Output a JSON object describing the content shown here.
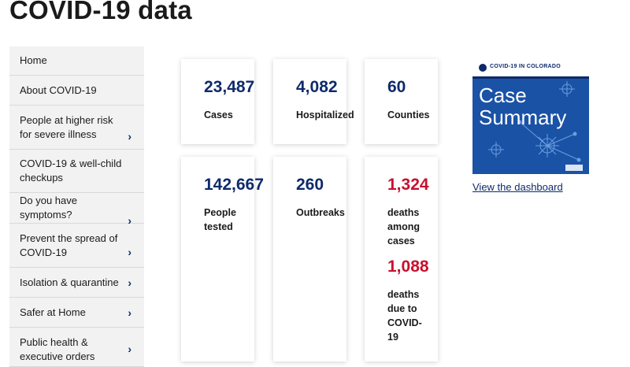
{
  "page": {
    "title": "COVID-19 data"
  },
  "sidebar": {
    "items": [
      {
        "label": "Home",
        "has_chevron": false
      },
      {
        "label": "About COVID-19",
        "has_chevron": false
      },
      {
        "label": "People at higher risk for severe illness",
        "has_chevron": true
      },
      {
        "label": "COVID-19 & well-child checkups",
        "has_chevron": false
      },
      {
        "label": "Do you have symptoms?",
        "has_chevron": true
      },
      {
        "label": "Prevent the spread of COVID-19",
        "has_chevron": true
      },
      {
        "label": "Isolation & quarantine",
        "has_chevron": true
      },
      {
        "label": "Safer at Home",
        "has_chevron": true
      },
      {
        "label": "Public health & executive orders",
        "has_chevron": true
      }
    ],
    "chevron_icon": "chevron-right-icon"
  },
  "stats": {
    "cases": {
      "value": "23,487",
      "label": "Cases"
    },
    "hospitalized": {
      "value": "4,082",
      "label": "Hospitalized"
    },
    "counties": {
      "value": "60",
      "label": "Counties"
    },
    "people_tested": {
      "value": "142,667",
      "label": "People tested"
    },
    "outbreaks": {
      "value": "260",
      "label": "Outbreaks"
    },
    "deaths_among_cases": {
      "value": "1,324",
      "label": "deaths among cases"
    },
    "deaths_due": {
      "value": "1,088",
      "label": "deaths due to COVID-19"
    }
  },
  "dashboard": {
    "header": "COVID-19 IN COLORADO",
    "title_line1": "Case",
    "title_line2": "Summary",
    "link": "View the dashboard"
  },
  "colors": {
    "accent_blue": "#0e2a6b",
    "deaths_red": "#c8102e",
    "sidebar_bg": "#f2f2f2",
    "thumb_bg": "#1a52a6"
  }
}
